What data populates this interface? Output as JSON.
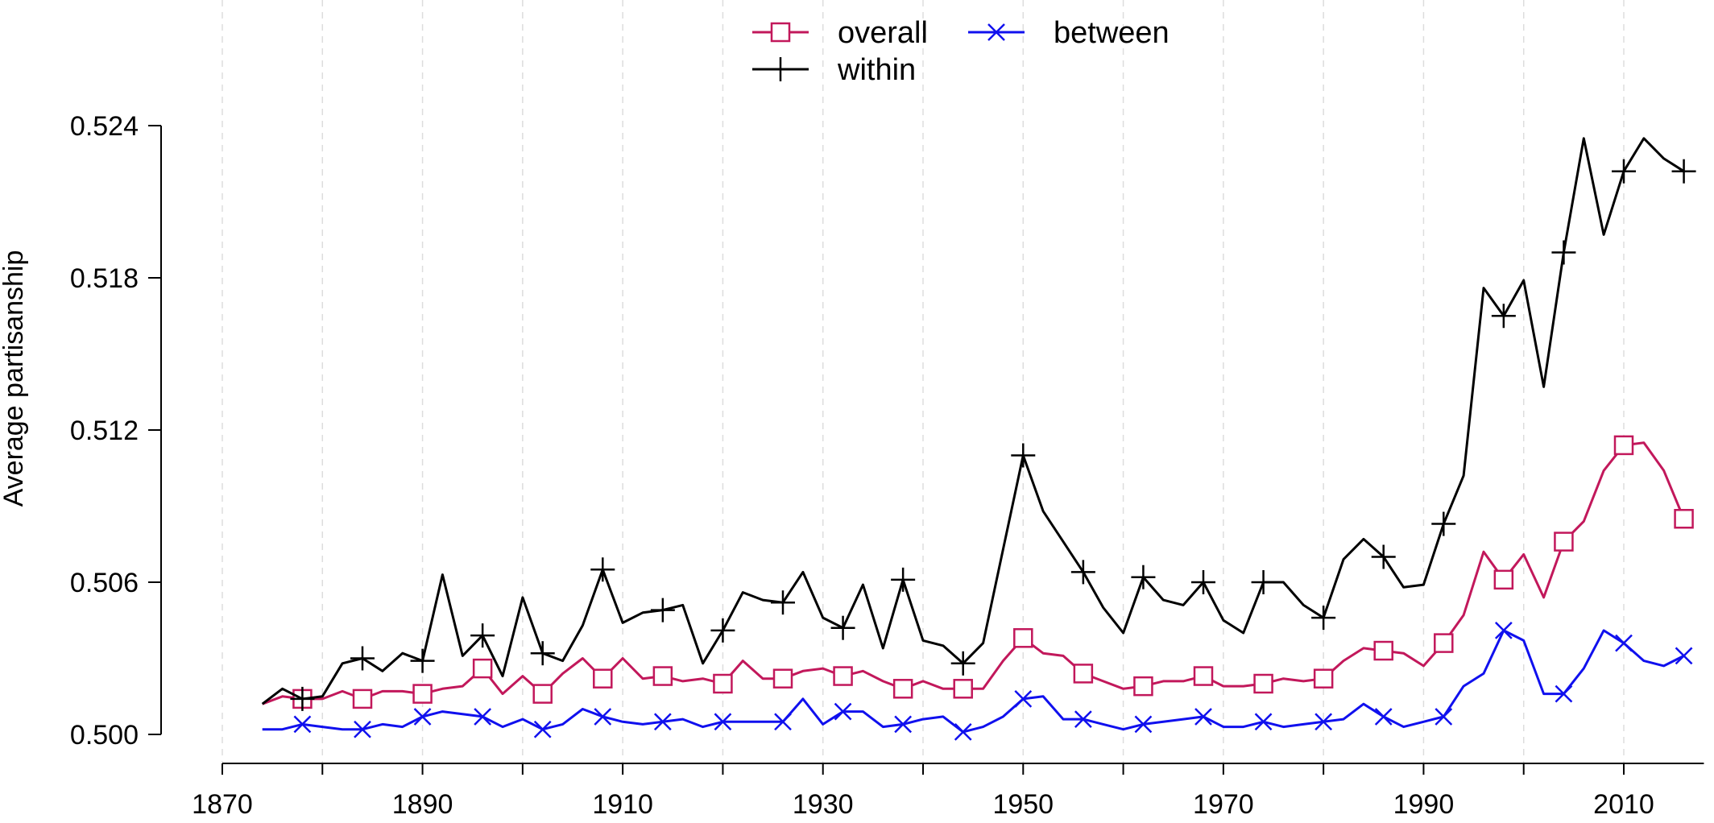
{
  "chart_data": {
    "type": "line",
    "ylabel": "Average partisanship",
    "xlabel": "",
    "xlim": [
      1870,
      2018
    ],
    "ylim": [
      0.5,
      0.524
    ],
    "x_ticks": [
      "1870",
      "1890",
      "1910",
      "1930",
      "1950",
      "1970",
      "1990",
      "2010"
    ],
    "y_ticks": [
      "0.500",
      "0.506",
      "0.512",
      "0.518",
      "0.524"
    ],
    "grid": "vertical dashed lines every 10 years",
    "legend_position": "top-center",
    "x": [
      1874,
      1876,
      1878,
      1880,
      1882,
      1884,
      1886,
      1888,
      1890,
      1892,
      1894,
      1896,
      1898,
      1900,
      1902,
      1904,
      1906,
      1908,
      1910,
      1912,
      1914,
      1916,
      1918,
      1920,
      1922,
      1924,
      1926,
      1928,
      1930,
      1932,
      1934,
      1936,
      1938,
      1940,
      1942,
      1944,
      1946,
      1948,
      1950,
      1952,
      1954,
      1956,
      1958,
      1960,
      1962,
      1964,
      1966,
      1968,
      1970,
      1972,
      1974,
      1976,
      1978,
      1980,
      1982,
      1984,
      1986,
      1988,
      1990,
      1992,
      1994,
      1996,
      1998,
      2000,
      2002,
      2004,
      2006,
      2008,
      2010,
      2012,
      2014,
      2016
    ],
    "series": [
      {
        "name": "overall",
        "color": "#c2185b",
        "marker": "square",
        "marker_every": 3,
        "values": [
          0.5012,
          0.5015,
          0.5014,
          0.5014,
          0.5017,
          0.5014,
          0.5017,
          0.5017,
          0.5016,
          0.5018,
          0.5019,
          0.5026,
          0.5016,
          0.5023,
          0.5016,
          0.5024,
          0.503,
          0.5022,
          0.503,
          0.5022,
          0.5023,
          0.5021,
          0.5022,
          0.502,
          0.5029,
          0.5022,
          0.5022,
          0.5025,
          0.5026,
          0.5023,
          0.5025,
          0.5021,
          0.5018,
          0.5021,
          0.5018,
          0.5018,
          0.5018,
          0.5029,
          0.5038,
          0.5032,
          0.5031,
          0.5024,
          0.5021,
          0.5018,
          0.5019,
          0.5021,
          0.5021,
          0.5023,
          0.5019,
          0.5019,
          0.502,
          0.5022,
          0.5021,
          0.5022,
          0.5029,
          0.5034,
          0.5033,
          0.5032,
          0.5027,
          0.5036,
          0.5047,
          0.5072,
          0.5061,
          0.5071,
          0.5054,
          0.5076,
          0.5084,
          0.5104,
          0.5114,
          0.5115,
          0.5104,
          0.5085
        ]
      },
      {
        "name": "within",
        "color": "#000000",
        "marker": "plus",
        "marker_every": 3,
        "values": [
          0.5012,
          0.5018,
          0.5014,
          0.5015,
          0.5028,
          0.503,
          0.5025,
          0.5032,
          0.5029,
          0.5063,
          0.5031,
          0.5039,
          0.5023,
          0.5054,
          0.5032,
          0.5029,
          0.5043,
          0.5065,
          0.5044,
          0.5048,
          0.5049,
          0.5051,
          0.5028,
          0.5041,
          0.5056,
          0.5053,
          0.5052,
          0.5064,
          0.5046,
          0.5042,
          0.5059,
          0.5034,
          0.5061,
          0.5037,
          0.5035,
          0.5028,
          0.5036,
          0.5073,
          0.511,
          0.5088,
          0.5076,
          0.5064,
          0.505,
          0.504,
          0.5062,
          0.5053,
          0.5051,
          0.506,
          0.5045,
          0.504,
          0.506,
          0.506,
          0.5051,
          0.5046,
          0.5069,
          0.5077,
          0.507,
          0.5058,
          0.5059,
          0.5083,
          0.5102,
          0.5176,
          0.5165,
          0.5179,
          0.5137,
          0.519,
          0.5235,
          0.5197,
          0.5222,
          0.5235,
          0.5227,
          0.5222
        ]
      },
      {
        "name": "between",
        "color": "#1010ee",
        "marker": "x",
        "marker_every": 3,
        "values": [
          0.5002,
          0.5002,
          0.5004,
          0.5003,
          0.5002,
          0.5002,
          0.5004,
          0.5003,
          0.5007,
          0.5009,
          0.5008,
          0.5007,
          0.5003,
          0.5006,
          0.5002,
          0.5004,
          0.501,
          0.5007,
          0.5005,
          0.5004,
          0.5005,
          0.5006,
          0.5003,
          0.5005,
          0.5005,
          0.5005,
          0.5005,
          0.5014,
          0.5004,
          0.5009,
          0.5009,
          0.5003,
          0.5004,
          0.5006,
          0.5007,
          0.5001,
          0.5003,
          0.5007,
          0.5014,
          0.5015,
          0.5006,
          0.5006,
          0.5004,
          0.5002,
          0.5004,
          0.5005,
          0.5006,
          0.5007,
          0.5003,
          0.5003,
          0.5005,
          0.5003,
          0.5004,
          0.5005,
          0.5006,
          0.5012,
          0.5007,
          0.5003,
          0.5005,
          0.5007,
          0.5019,
          0.5024,
          0.5041,
          0.5037,
          0.5016,
          0.5016,
          0.5026,
          0.5041,
          0.5036,
          0.5029,
          0.5027,
          0.5031
        ]
      }
    ]
  }
}
